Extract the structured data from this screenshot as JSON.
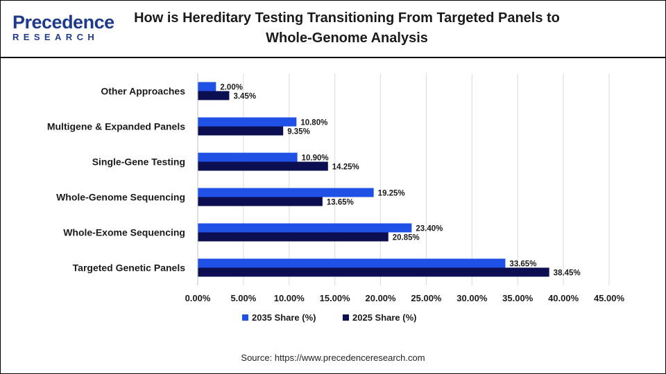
{
  "header": {
    "logo_primary": "Precedence",
    "logo_secondary": "RESEARCH",
    "title": "How is Hereditary Testing Transitioning From Targeted Panels to Whole-Genome Analysis"
  },
  "source": "Source: https://www.precedenceresearch.com",
  "colors": {
    "series_2035": "#1f51e6",
    "series_2025": "#0b0f52",
    "grid": "#d9d9d9",
    "brand": "#1f3a8a"
  },
  "chart_data": {
    "type": "bar",
    "orientation": "horizontal",
    "categories": [
      "Other Approaches",
      "Multigene & Expanded Panels",
      "Single-Gene Testing",
      "Whole-Genome Sequencing",
      "Whole-Exome Sequencing",
      "Targeted Genetic Panels"
    ],
    "series": [
      {
        "name": "2035 Share (%)",
        "values": [
          2.0,
          10.8,
          10.9,
          19.25,
          23.4,
          33.65
        ],
        "labels": [
          "2.00%",
          "10.80%",
          "10.90%",
          "19.25%",
          "23.40%",
          "33.65%"
        ]
      },
      {
        "name": "2025 Share (%)",
        "values": [
          3.45,
          9.35,
          14.25,
          13.65,
          20.85,
          38.45
        ],
        "labels": [
          "3.45%",
          "9.35%",
          "14.25%",
          "13.65%",
          "20.85%",
          "38.45%"
        ]
      }
    ],
    "xlim": [
      0,
      45
    ],
    "xticks": [
      "0.00%",
      "5.00%",
      "10.00%",
      "15.00%",
      "20.00%",
      "25.00%",
      "30.00%",
      "35.00%",
      "40.00%",
      "45.00%"
    ],
    "grid": true,
    "legend_position": "bottom"
  }
}
